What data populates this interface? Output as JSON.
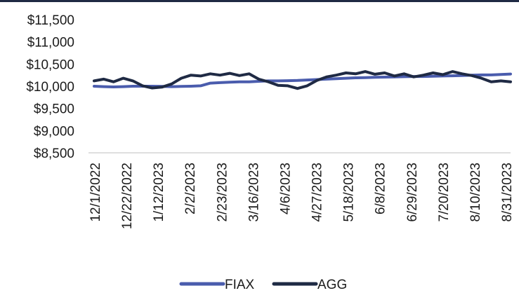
{
  "chart_data": {
    "type": "line",
    "title": "",
    "xlabel": "",
    "ylabel": "",
    "ylim": [
      8500,
      11500
    ],
    "yticks": [
      8500,
      9000,
      9500,
      10000,
      10500,
      11000,
      11500
    ],
    "ytick_labels": [
      "$8,500",
      "$9,000",
      "$9,500",
      "$10,000",
      "$10,500",
      "$11,000",
      "$11,500"
    ],
    "xtick_labels": [
      "12/1/2022",
      "12/22/2022",
      "1/12/2023",
      "2/2/2023",
      "2/23/2023",
      "3/16/2023",
      "4/6/2023",
      "4/27/2023",
      "5/18/2023",
      "6/8/2023",
      "6/29/2023",
      "7/20/2023",
      "8/10/2023",
      "8/31/2023"
    ],
    "grid": false,
    "legend": "bottom",
    "series": [
      {
        "name": "FIAX",
        "color": "#4a5cad",
        "values": [
          10000,
          9990,
          9985,
          9990,
          10000,
          10000,
          10000,
          9995,
          9990,
          9995,
          10000,
          10010,
          10070,
          10080,
          10090,
          10100,
          10100,
          10110,
          10120,
          10120,
          10125,
          10130,
          10140,
          10150,
          10160,
          10170,
          10180,
          10190,
          10195,
          10200,
          10205,
          10210,
          10215,
          10220,
          10220,
          10225,
          10230,
          10235,
          10240,
          10250,
          10255,
          10255,
          10265,
          10275
        ]
      },
      {
        "name": "AGG",
        "color": "#1f2a44",
        "values": [
          10120,
          10160,
          10100,
          10180,
          10120,
          10010,
          9960,
          9980,
          10050,
          10180,
          10250,
          10230,
          10280,
          10250,
          10290,
          10240,
          10280,
          10160,
          10100,
          10020,
          10010,
          9950,
          10010,
          10130,
          10210,
          10250,
          10300,
          10280,
          10330,
          10270,
          10300,
          10230,
          10280,
          10210,
          10250,
          10300,
          10260,
          10330,
          10280,
          10240,
          10180,
          10100,
          10120,
          10100
        ]
      }
    ]
  }
}
